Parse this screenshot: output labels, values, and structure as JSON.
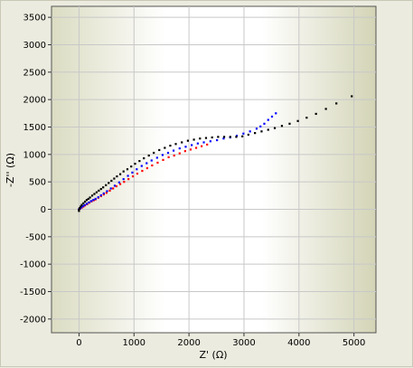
{
  "chart_data": {
    "type": "scatter",
    "xlabel": "Z' (Ω)",
    "ylabel": "-Z'' (Ω)",
    "xlim": [
      -500,
      5400
    ],
    "ylim": [
      -2250,
      3700
    ],
    "x_ticks": [
      0,
      1000,
      2000,
      3000,
      4000,
      5000
    ],
    "y_ticks": [
      -2000,
      -1500,
      -1000,
      -500,
      0,
      500,
      1000,
      1500,
      2000,
      2500,
      3000,
      3500
    ],
    "grid": true,
    "series": [
      {
        "color": "#ff0000",
        "points": [
          [
            0,
            0
          ],
          [
            20,
            10
          ],
          [
            50,
            30
          ],
          [
            80,
            50
          ],
          [
            110,
            70
          ],
          [
            150,
            95
          ],
          [
            190,
            120
          ],
          [
            230,
            145
          ],
          [
            270,
            165
          ],
          [
            300,
            180
          ],
          [
            350,
            210
          ],
          [
            400,
            240
          ],
          [
            450,
            270
          ],
          [
            500,
            300
          ],
          [
            560,
            340
          ],
          [
            620,
            380
          ],
          [
            680,
            420
          ],
          [
            750,
            460
          ],
          [
            820,
            500
          ],
          [
            900,
            550
          ],
          [
            980,
            600
          ],
          [
            1060,
            650
          ],
          [
            1150,
            700
          ],
          [
            1240,
            750
          ],
          [
            1330,
            800
          ],
          [
            1430,
            850
          ],
          [
            1530,
            900
          ],
          [
            1630,
            950
          ],
          [
            1730,
            980
          ],
          [
            1830,
            1020
          ],
          [
            1930,
            1060
          ],
          [
            2030,
            1090
          ],
          [
            2130,
            1120
          ],
          [
            2230,
            1150
          ],
          [
            2330,
            1180
          ]
        ]
      },
      {
        "color": "#0000ff",
        "points": [
          [
            0,
            0
          ],
          [
            20,
            15
          ],
          [
            40,
            35
          ],
          [
            70,
            55
          ],
          [
            100,
            75
          ],
          [
            140,
            100
          ],
          [
            180,
            125
          ],
          [
            220,
            150
          ],
          [
            260,
            170
          ],
          [
            300,
            190
          ],
          [
            350,
            220
          ],
          [
            400,
            255
          ],
          [
            450,
            290
          ],
          [
            510,
            330
          ],
          [
            580,
            380
          ],
          [
            650,
            430
          ],
          [
            730,
            490
          ],
          [
            810,
            550
          ],
          [
            890,
            610
          ],
          [
            970,
            670
          ],
          [
            1050,
            730
          ],
          [
            1140,
            790
          ],
          [
            1230,
            840
          ],
          [
            1320,
            890
          ],
          [
            1420,
            940
          ],
          [
            1520,
            990
          ],
          [
            1620,
            1030
          ],
          [
            1720,
            1070
          ],
          [
            1830,
            1110
          ],
          [
            1940,
            1140
          ],
          [
            2050,
            1170
          ],
          [
            2160,
            1200
          ],
          [
            2270,
            1220
          ],
          [
            2390,
            1240
          ],
          [
            2510,
            1260
          ],
          [
            2630,
            1290
          ],
          [
            2750,
            1310
          ],
          [
            2870,
            1340
          ],
          [
            2990,
            1380
          ],
          [
            3110,
            1420
          ],
          [
            3230,
            1470
          ],
          [
            3300,
            1510
          ],
          [
            3370,
            1560
          ],
          [
            3440,
            1630
          ],
          [
            3510,
            1690
          ],
          [
            3580,
            1750
          ]
        ]
      },
      {
        "color": "#000000",
        "points": [
          [
            0,
            -30
          ],
          [
            0,
            -10
          ],
          [
            10,
            20
          ],
          [
            30,
            50
          ],
          [
            50,
            80
          ],
          [
            80,
            110
          ],
          [
            110,
            140
          ],
          [
            140,
            170
          ],
          [
            170,
            190
          ],
          [
            200,
            215
          ],
          [
            240,
            250
          ],
          [
            280,
            280
          ],
          [
            320,
            310
          ],
          [
            360,
            340
          ],
          [
            400,
            370
          ],
          [
            440,
            400
          ],
          [
            490,
            440
          ],
          [
            540,
            480
          ],
          [
            590,
            520
          ],
          [
            640,
            560
          ],
          [
            690,
            600
          ],
          [
            750,
            640
          ],
          [
            810,
            690
          ],
          [
            880,
            730
          ],
          [
            950,
            780
          ],
          [
            1020,
            830
          ],
          [
            1100,
            880
          ],
          [
            1180,
            930
          ],
          [
            1270,
            980
          ],
          [
            1360,
            1030
          ],
          [
            1460,
            1080
          ],
          [
            1560,
            1120
          ],
          [
            1660,
            1160
          ],
          [
            1760,
            1190
          ],
          [
            1870,
            1220
          ],
          [
            1980,
            1250
          ],
          [
            2090,
            1270
          ],
          [
            2200,
            1290
          ],
          [
            2310,
            1300
          ],
          [
            2420,
            1310
          ],
          [
            2530,
            1320
          ],
          [
            2640,
            1320
          ],
          [
            2750,
            1320
          ],
          [
            2860,
            1320
          ],
          [
            2970,
            1330
          ],
          [
            3080,
            1360
          ],
          [
            3200,
            1390
          ],
          [
            3320,
            1420
          ],
          [
            3440,
            1450
          ],
          [
            3560,
            1480
          ],
          [
            3690,
            1520
          ],
          [
            3830,
            1560
          ],
          [
            3980,
            1610
          ],
          [
            4140,
            1670
          ],
          [
            4310,
            1740
          ],
          [
            4490,
            1830
          ],
          [
            4680,
            1930
          ],
          [
            4960,
            2060
          ]
        ]
      }
    ]
  }
}
